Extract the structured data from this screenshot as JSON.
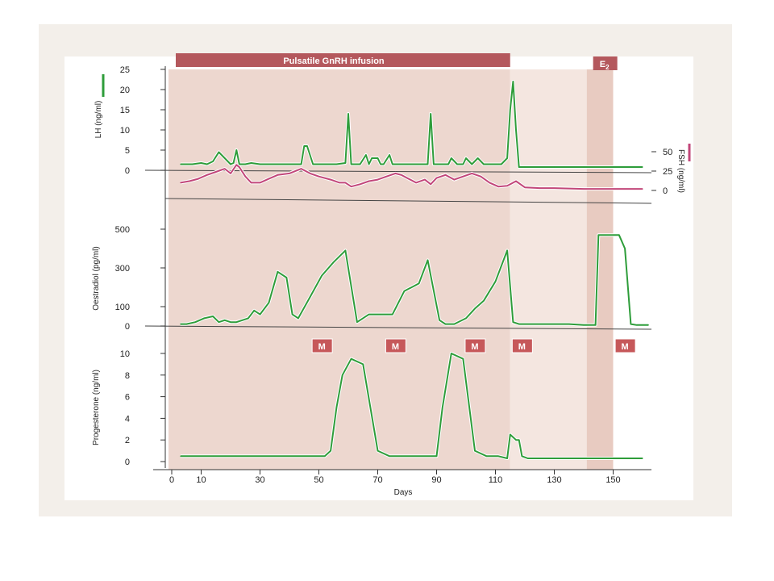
{
  "colors": {
    "page_bg": "#f3efea",
    "infusion_shade": "#edd7cf",
    "e2_shade": "#e8cbc1",
    "bar": "#b4585d",
    "lh_line": "#2e9d3a",
    "fsh_line": "#c2477a",
    "oest_line": "#2e9d3a",
    "prog_line": "#2e9d3a",
    "m_box": "#c6585a"
  },
  "chart_data": {
    "type": "line",
    "infusion_label": "Pulsatile GnRH infusion",
    "infusion_days": [
      0,
      115
    ],
    "e2_label": "E",
    "e2_subscript": "2",
    "e2_days": [
      141,
      150
    ],
    "xlabel": "Days",
    "x_ticks": [
      "0",
      "10",
      "30",
      "50",
      "70",
      "90",
      "110",
      "130",
      "150"
    ],
    "x_tick_values": [
      0,
      10,
      30,
      50,
      70,
      90,
      110,
      130,
      150
    ],
    "xlim": [
      -6,
      162
    ],
    "panels": [
      {
        "ylabel": "LH (ng/ml)",
        "ylim": [
          0,
          25
        ],
        "y_ticks": [
          0,
          5,
          10,
          15,
          20,
          25
        ],
        "series": [
          {
            "x": [
              3,
              7,
              10,
              12,
              14,
              16,
              18,
              20,
              21,
              22,
              23,
              25,
              27,
              30,
              33,
              36,
              40,
              44,
              45,
              46,
              48,
              52,
              56,
              59,
              60,
              61,
              64,
              66,
              67,
              68,
              70,
              71,
              72,
              74,
              75,
              77,
              80,
              83,
              85,
              87,
              88,
              89,
              91,
              94,
              95,
              97,
              99,
              100,
              102,
              104,
              106,
              108,
              110,
              112,
              114,
              115,
              116,
              117,
              118,
              120,
              125,
              130,
              135,
              140,
              145,
              150,
              155,
              160
            ],
            "y": [
              1.5,
              1.5,
              1.8,
              1.5,
              2.2,
              4.5,
              3,
              1.5,
              1.8,
              5,
              1.5,
              1.5,
              1.8,
              1.5,
              1.5,
              1.5,
              1.5,
              1.5,
              6,
              6,
              1.5,
              1.5,
              1.5,
              1.8,
              14,
              1.5,
              1.5,
              3.8,
              1.5,
              3,
              3,
              1.5,
              1.5,
              3.8,
              1.5,
              1.5,
              1.5,
              1.5,
              1.5,
              1.5,
              14,
              1.5,
              1.5,
              1.5,
              3,
              1.5,
              1.5,
              3,
              1.5,
              3,
              1.5,
              1.5,
              1.5,
              1.5,
              3,
              15,
              22,
              10,
              0.8,
              0.8,
              0.8,
              0.8,
              0.8,
              0.8,
              0.8,
              0.8,
              0.8,
              0.8
            ]
          }
        ]
      },
      {
        "ylabel": "FSH (ng/ml)",
        "ylim": [
          0,
          50
        ],
        "y_ticks": [
          0,
          25,
          50
        ],
        "series": [
          {
            "x": [
              3,
              6,
              9,
              12,
              15,
              18,
              20,
              22,
              23,
              25,
              27,
              30,
              33,
              36,
              40,
              44,
              47,
              50,
              54,
              57,
              59,
              61,
              64,
              67,
              70,
              73,
              76,
              78,
              80,
              83,
              86,
              88,
              90,
              93,
              96,
              99,
              102,
              105,
              108,
              111,
              114,
              117,
              120,
              125,
              130,
              140,
              150,
              160
            ],
            "y": [
              10,
              12,
              15,
              20,
              24,
              28,
              22,
              33,
              30,
              18,
              10,
              10,
              15,
              20,
              22,
              28,
              22,
              18,
              14,
              10,
              10,
              5,
              8,
              12,
              14,
              18,
              22,
              20,
              16,
              10,
              14,
              8,
              16,
              20,
              14,
              18,
              22,
              18,
              10,
              5,
              6,
              12,
              4,
              3,
              3,
              2,
              2,
              2
            ]
          }
        ]
      },
      {
        "ylabel": "Oestradiol (pg/ml)",
        "ylim": [
          0,
          500
        ],
        "y_ticks": [
          0,
          100,
          300,
          500
        ],
        "series": [
          {
            "x": [
              3,
              5,
              8,
              11,
              14,
              16,
              18,
              20,
              22,
              24,
              26,
              28,
              30,
              33,
              36,
              39,
              41,
              43,
              47,
              51,
              55,
              59,
              63,
              67,
              71,
              75,
              79,
              84,
              87,
              91,
              93,
              96,
              100,
              103,
              106,
              110,
              114,
              116,
              118,
              120,
              125,
              130,
              135,
              140,
              144,
              145,
              147,
              150,
              152,
              154,
              156,
              158,
              162
            ],
            "y": [
              10,
              10,
              20,
              40,
              50,
              20,
              30,
              20,
              20,
              30,
              40,
              80,
              60,
              120,
              280,
              250,
              60,
              40,
              150,
              260,
              330,
              390,
              20,
              60,
              60,
              60,
              180,
              220,
              340,
              30,
              10,
              10,
              40,
              90,
              130,
              230,
              390,
              20,
              10,
              10,
              10,
              10,
              10,
              5,
              5,
              470,
              470,
              470,
              470,
              400,
              10,
              5,
              5
            ]
          }
        ]
      },
      {
        "ylabel": "Progesterone (ng/ml)",
        "ylim": [
          0,
          10
        ],
        "y_ticks": [
          0,
          2,
          4,
          6,
          8,
          10
        ],
        "series": [
          {
            "x": [
              3,
              7,
              10,
              14,
              18,
              22,
              26,
              30,
              35,
              40,
              45,
              49,
              52,
              54,
              56,
              58,
              61,
              65,
              70,
              74,
              78,
              82,
              87,
              90,
              92,
              95,
              99,
              103,
              107,
              111,
              114,
              115,
              117,
              118,
              119,
              121,
              125,
              130,
              135,
              140,
              143,
              145,
              150,
              155,
              160
            ],
            "y": [
              0.5,
              0.5,
              0.5,
              0.5,
              0.5,
              0.5,
              0.5,
              0.5,
              0.5,
              0.5,
              0.5,
              0.5,
              0.5,
              1,
              5,
              8,
              9.5,
              9,
              1,
              0.5,
              0.5,
              0.5,
              0.5,
              0.5,
              5,
              10,
              9.5,
              1,
              0.5,
              0.5,
              0.3,
              2.5,
              2,
              2,
              0.5,
              0.3,
              0.3,
              0.3,
              0.3,
              0.3,
              0.3,
              0.3,
              0.3,
              0.3,
              0.3
            ]
          }
        ]
      }
    ],
    "menses_label": "M",
    "menses_days": [
      51,
      76,
      103,
      119,
      154
    ]
  }
}
